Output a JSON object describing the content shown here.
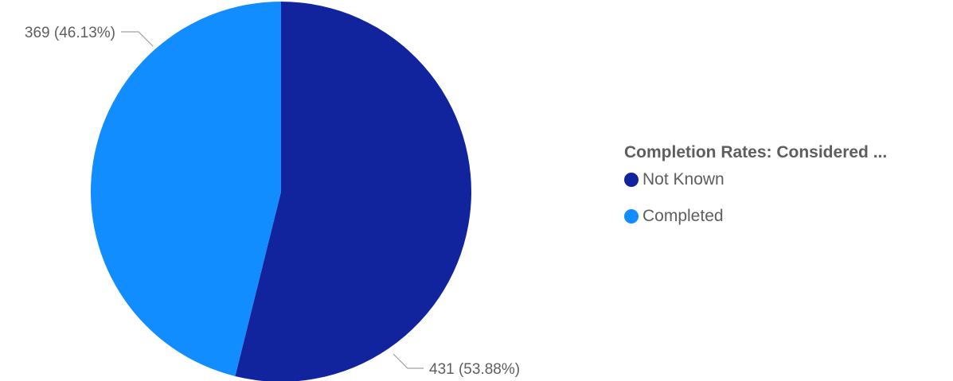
{
  "chart_data": {
    "type": "pie",
    "legend_title": "Completion Rates: Considered ...",
    "legend_position": "right",
    "slices": [
      {
        "label": "Not Known",
        "value": 431,
        "percent": 53.88,
        "data_label": "431 (53.88%)",
        "color": "#12239E"
      },
      {
        "label": "Completed",
        "value": 369,
        "percent": 46.13,
        "data_label": "369 (46.13%)",
        "color": "#118DFF"
      }
    ]
  }
}
